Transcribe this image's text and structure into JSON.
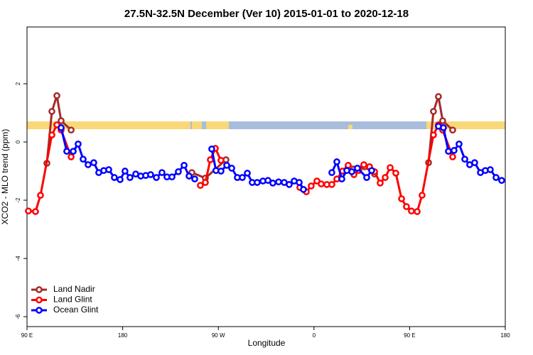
{
  "chart_data": {
    "type": "line",
    "title": "27.5N-32.5N December (Ver 10)   2015-01-01 to 2020-12-18",
    "x_label": "Longitude",
    "y_label": "XCO2 - MLO trend (ppm)",
    "xlim": [
      90,
      540
    ],
    "xticks": [
      {
        "value": 90,
        "label": "90 E"
      },
      180,
      {
        "value": 270,
        "label": "90 W"
      },
      {
        "value": 360,
        "label": "0"
      },
      {
        "value": 450,
        "label": "90 E"
      },
      {
        "value": 540,
        "label": "180"
      }
    ],
    "ylim": [
      -6.34,
      3.95
    ],
    "yticks": [
      -6,
      -4,
      -2,
      0,
      2
    ],
    "grid": false,
    "legend": "bottom-left",
    "series": [
      {
        "name": "Land Nadir",
        "color": "#a52a2a",
        "x": [
          108.7,
          113.4,
          118.1,
          122.1,
          131.5,
          null,
          245.1,
          257.8,
          277.2,
          null,
          392.2,
          407.6,
          417.0,
          null,
          467.8,
          472.4,
          477.1,
          481.1,
          490.5
        ],
        "values": [
          -0.73,
          1.05,
          1.59,
          0.73,
          0.41,
          null,
          -1.05,
          -1.24,
          -0.61,
          null,
          -0.85,
          -0.85,
          -1.1,
          null,
          -0.71,
          1.05,
          1.56,
          0.73,
          0.41
        ]
      },
      {
        "name": "Land Glint",
        "color": "#ff0000",
        "x": [
          91.3,
          98.0,
          102.7,
          113.4,
          118.1,
          122.1,
          131.5,
          null,
          253.1,
          257.8,
          262.5,
          267.2,
          272.5,
          null,
          346.7,
          352.8,
          357.4,
          362.8,
          366.8,
          372.1,
          376.8,
          381.5,
          386.9,
          392.2,
          397.6,
          402.2,
          406.9,
          412.3,
          417.0,
          422.3,
          427.0,
          431.7,
          437.0,
          442.4,
          447.0,
          451.7,
          457.1,
          461.7,
          472.4,
          477.1,
          481.1,
          490.5
        ],
        "values": [
          -2.37,
          -2.39,
          -1.83,
          0.24,
          0.59,
          0.41,
          -0.51,
          null,
          -1.49,
          -1.39,
          -0.61,
          -0.22,
          -0.63,
          null,
          -1.56,
          -1.71,
          -1.51,
          -1.34,
          -1.44,
          -1.46,
          -1.46,
          -1.27,
          -1.0,
          -0.8,
          -1.12,
          -0.98,
          -0.78,
          -0.85,
          -1.02,
          -1.41,
          -1.22,
          -0.88,
          -1.07,
          -1.95,
          -2.22,
          -2.37,
          -2.39,
          -1.83,
          0.24,
          0.59,
          0.41,
          -0.51
        ]
      },
      {
        "name": "Ocean Glint",
        "color": "#0000ff",
        "x": [
          122.1,
          127.4,
          133.5,
          138.1,
          142.8,
          147.5,
          152.8,
          157.5,
          162.2,
          166.9,
          172.2,
          177.6,
          182.2,
          186.9,
          192.3,
          197.0,
          201.7,
          206.3,
          211.7,
          217.0,
          221.7,
          226.4,
          232.4,
          237.8,
          242.5,
          247.8,
          null,
          263.8,
          267.8,
          272.5,
          277.9,
          282.6,
          287.9,
          292.6,
          297.3,
          301.9,
          306.6,
          312.0,
          316.7,
          321.3,
          326.7,
          332.0,
          336.7,
          341.4,
          346.1,
          350.1,
          null,
          376.8,
          381.5,
          386.2,
          390.9,
          395.6,
          400.9,
          409.6,
          414.3,
          null,
          477.1,
          481.8,
          486.5,
          491.8,
          496.5,
          501.9,
          506.5,
          511.2,
          516.6,
          521.2,
          525.9,
          531.3,
          536.6
        ],
        "values": [
          0.49,
          -0.32,
          -0.32,
          -0.07,
          -0.59,
          -0.78,
          -0.71,
          -1.05,
          -0.98,
          -0.95,
          -1.22,
          -1.29,
          -1.0,
          -1.22,
          -1.1,
          -1.17,
          -1.15,
          -1.12,
          -1.22,
          -1.05,
          -1.2,
          -1.2,
          -1.02,
          -0.8,
          -1.17,
          -1.27,
          null,
          -0.24,
          -0.98,
          -1.0,
          -0.8,
          -0.9,
          -1.22,
          -1.22,
          -1.07,
          -1.39,
          -1.39,
          -1.34,
          -1.32,
          -1.41,
          -1.37,
          -1.39,
          -1.46,
          -1.34,
          -1.39,
          -1.63,
          null,
          -1.05,
          -0.68,
          -1.27,
          -0.98,
          -1.02,
          -0.9,
          -1.22,
          -0.98,
          null,
          0.54,
          0.49,
          -0.32,
          -0.29,
          -0.07,
          -0.59,
          -0.78,
          -0.71,
          -1.05,
          -0.98,
          -0.95,
          -1.22,
          -1.32
        ]
      }
    ]
  }
}
